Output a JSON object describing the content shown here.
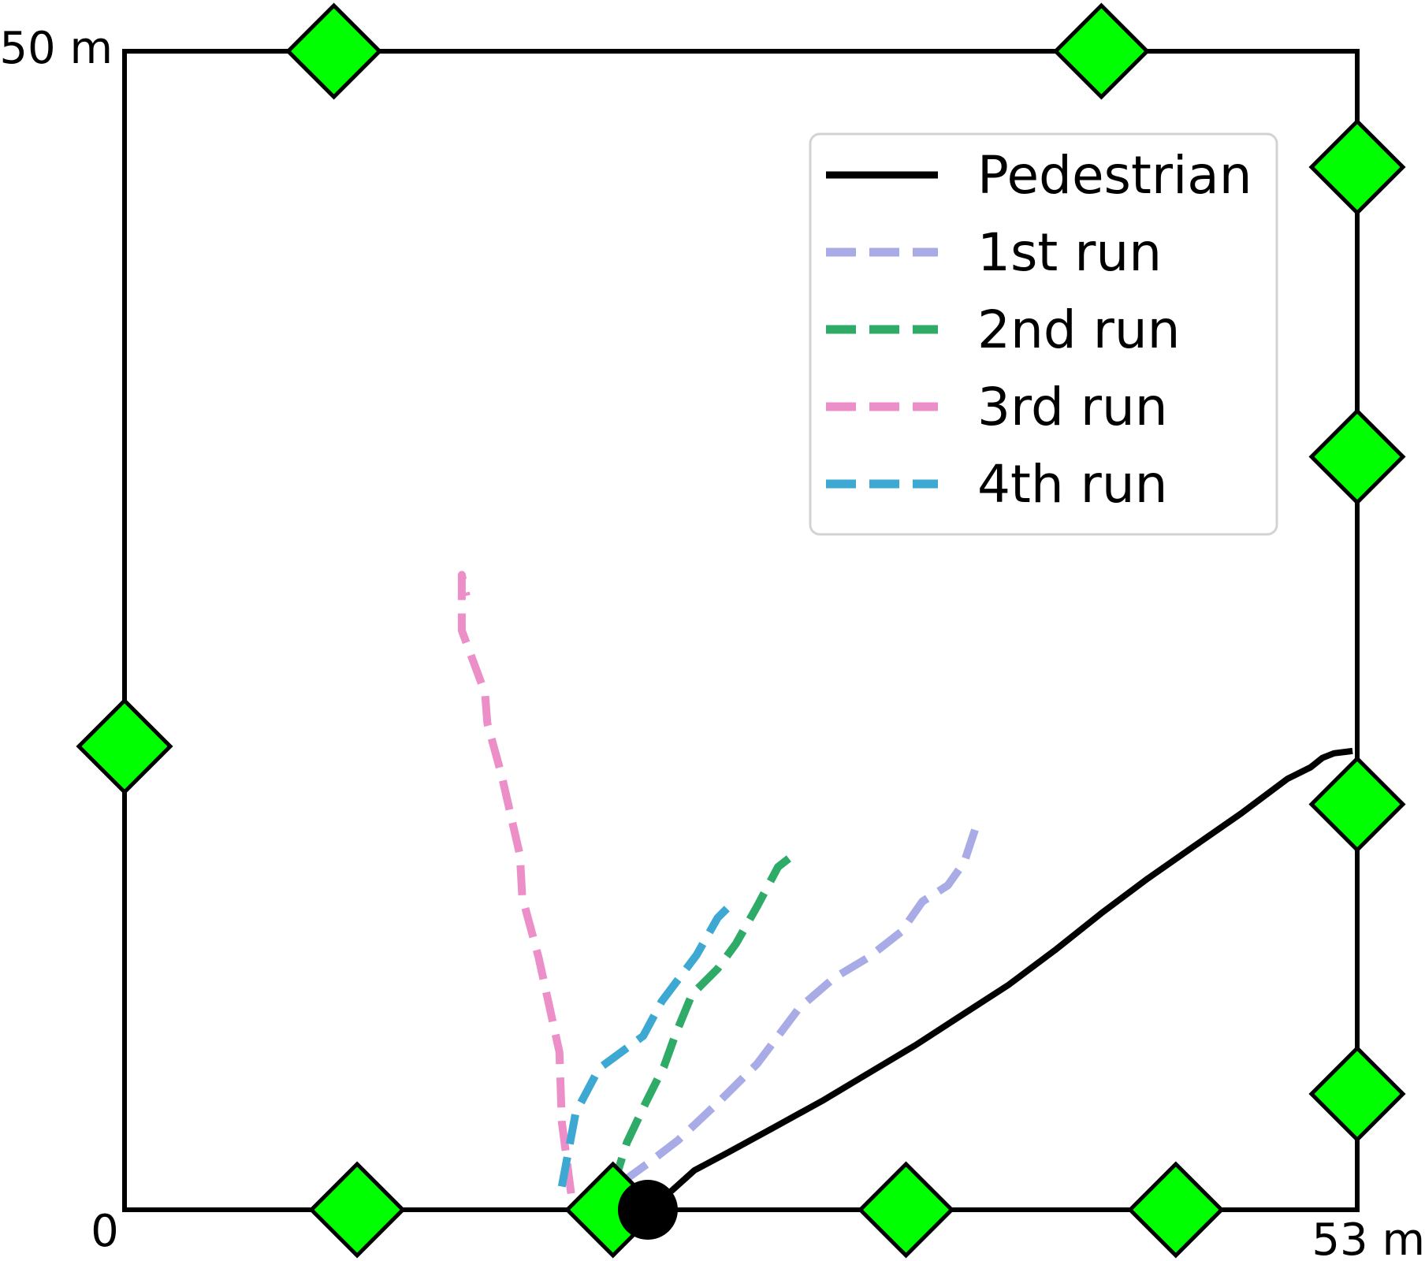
{
  "chart_data": {
    "type": "line",
    "title": "",
    "xlabel": "",
    "ylabel": "",
    "xlim": [
      0,
      53
    ],
    "ylim": [
      0,
      50
    ],
    "grid": false,
    "legend_position": "top-right",
    "corner_labels": {
      "origin": "0",
      "x_max": "53 m",
      "y_max": "50 m"
    },
    "colors": {
      "pedestrian": "#000000",
      "run1": "#a8abe5",
      "run2": "#2eab67",
      "run3": "#ec8fc9",
      "run4": "#3da9d3",
      "anchor_fill": "#00ff00",
      "anchor_stroke": "#000000",
      "frame": "#000000"
    },
    "series": [
      {
        "name": "Pedestrian",
        "style": "solid",
        "color": "#000000",
        "x": [
          23.5,
          24.5,
          26.0,
          28.0,
          30.0,
          32.0,
          34.0,
          36.0,
          38.0,
          40.0,
          42.0,
          44.0,
          46.0,
          48.0,
          50.0,
          51.0,
          51.5,
          52.0,
          52.8
        ],
        "y": [
          0.8,
          1.7,
          2.5,
          3.6,
          4.7,
          5.9,
          7.1,
          8.4,
          9.7,
          11.2,
          12.8,
          14.3,
          15.7,
          17.1,
          18.6,
          19.1,
          19.5,
          19.7,
          19.8
        ]
      },
      {
        "name": "1st run",
        "style": "dashed",
        "color": "#a8abe5",
        "x": [
          21.4,
          22.5,
          23.8,
          25.6,
          27.2,
          29.0,
          30.5,
          32.0,
          33.4,
          34.3,
          35.4,
          36.1,
          36.6
        ],
        "y": [
          1.2,
          2.0,
          3.0,
          4.7,
          6.3,
          8.7,
          10.0,
          10.9,
          12.0,
          13.3,
          14.0,
          15.0,
          16.5
        ]
      },
      {
        "name": "2nd run",
        "style": "dashed",
        "color": "#2eab67",
        "x": [
          21.0,
          21.6,
          22.4,
          23.2,
          23.7,
          24.4,
          25.5,
          26.3,
          27.2,
          28.1,
          29.0
        ],
        "y": [
          1.0,
          2.9,
          4.6,
          6.2,
          7.6,
          9.3,
          10.4,
          11.5,
          13.1,
          14.8,
          15.5
        ]
      },
      {
        "name": "3rd run",
        "style": "dashed",
        "color": "#ec8fc9",
        "x": [
          19.2,
          18.8,
          18.7,
          17.8,
          17.1,
          17.0,
          16.2,
          15.6,
          15.5,
          14.5,
          14.5,
          14.7
        ],
        "y": [
          0.7,
          3.8,
          6.8,
          10.9,
          13.5,
          15.3,
          18.8,
          21.0,
          22.3,
          25.0,
          27.4,
          26.5
        ]
      },
      {
        "name": "4th run",
        "style": "dashed",
        "color": "#3da9d3",
        "x": [
          18.8,
          19.1,
          19.4,
          20.4,
          22.3,
          23.1,
          24.6,
          25.5,
          25.9
        ],
        "y": [
          1.0,
          2.6,
          4.2,
          6.1,
          7.5,
          9.0,
          11.0,
          12.6,
          13.0
        ]
      }
    ],
    "anchors": {
      "x": [
        10.0,
        21.0,
        33.6,
        45.2,
        9.0,
        42.0,
        53.0,
        53.0,
        53.0,
        53.0,
        0.0
      ],
      "y": [
        0.0,
        0.0,
        0.0,
        0.0,
        50.0,
        50.0,
        45.0,
        32.5,
        17.5,
        5.0,
        20.0
      ]
    },
    "start_marker": {
      "x": 22.5,
      "y": 0.0
    }
  }
}
